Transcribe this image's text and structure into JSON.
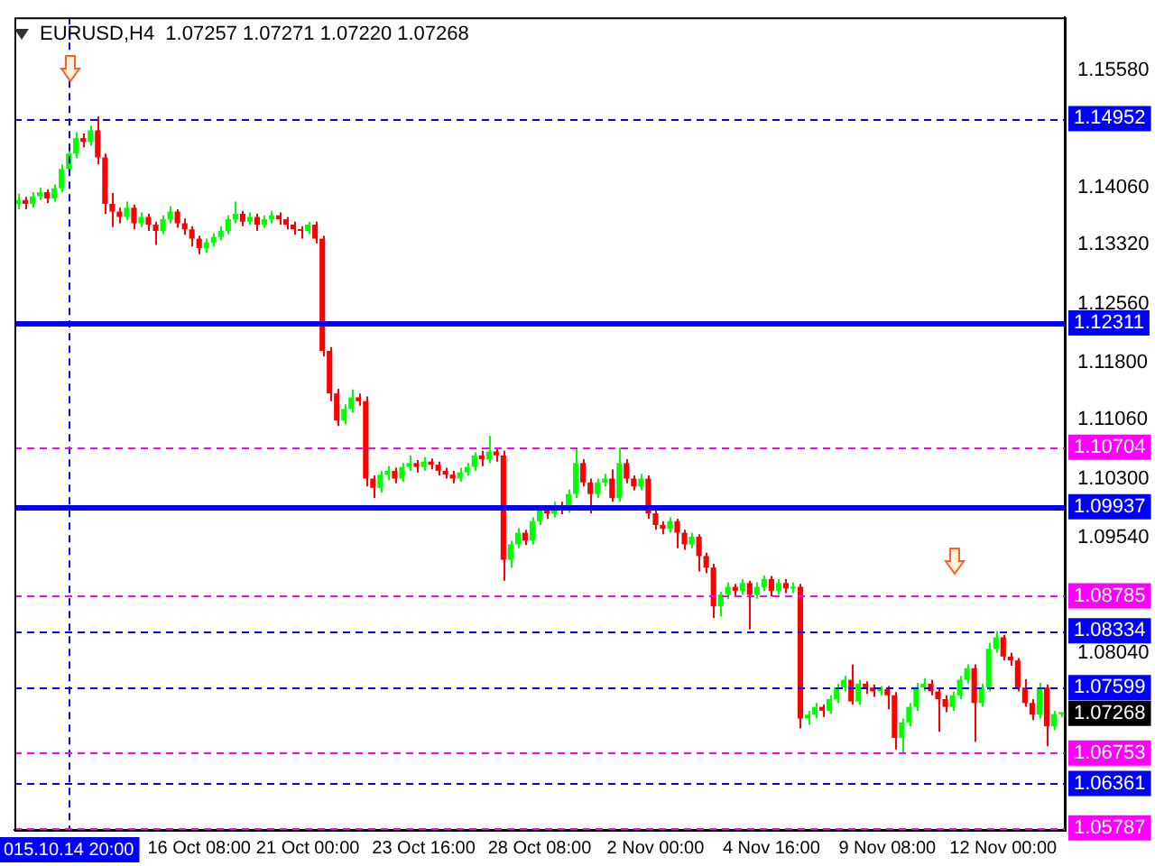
{
  "chart_data": {
    "type": "candlestick",
    "title": "EURUSD,H4  1.07257 1.07271 1.07220 1.07268",
    "categories": [
      null,
      null,
      null,
      null,
      null,
      null,
      null,
      "015.10.14 20:00",
      null,
      null,
      null,
      null,
      null,
      null,
      null,
      null,
      null,
      null,
      null,
      null,
      null,
      null,
      null,
      null,
      null,
      "16 Oct 08:00",
      null,
      null,
      null,
      null,
      null,
      null,
      null,
      null,
      null,
      null,
      null,
      null,
      null,
      null,
      "21 Oct 00:00",
      null,
      null,
      null,
      null,
      null,
      null,
      null,
      null,
      null,
      null,
      null,
      null,
      null,
      null,
      null,
      "23 Oct 16:00",
      null,
      null,
      null,
      null,
      null,
      null,
      null,
      null,
      null,
      null,
      null,
      null,
      null,
      null,
      null,
      "28 Oct 08:00",
      null,
      null,
      null,
      null,
      null,
      null,
      null,
      null,
      null,
      null,
      null,
      null,
      null,
      null,
      null,
      "2 Nov 00:00",
      null,
      null,
      null,
      null,
      null,
      null,
      null,
      null,
      null,
      null,
      null,
      null,
      null,
      null,
      null,
      "4 Nov 16:00",
      null,
      null,
      null,
      null,
      null,
      null,
      null,
      null,
      null,
      null,
      null,
      null,
      null,
      null,
      null,
      "9 Nov 08:00",
      null,
      null,
      null,
      null,
      null,
      null,
      null,
      null,
      null,
      null,
      null,
      null,
      null,
      null,
      null,
      "12 Nov 00:00",
      null,
      null,
      null,
      null,
      null,
      null,
      null,
      null
    ],
    "ohlc": [
      [
        1.1385,
        1.1398,
        1.1378,
        1.139
      ],
      [
        1.139,
        1.1394,
        1.1378,
        1.1385
      ],
      [
        1.1385,
        1.14,
        1.138,
        1.1395
      ],
      [
        1.1395,
        1.1406,
        1.139,
        1.14
      ],
      [
        1.14,
        1.1404,
        1.1386,
        1.1392
      ],
      [
        1.1392,
        1.141,
        1.1388,
        1.1405
      ],
      [
        1.1405,
        1.1436,
        1.14,
        1.143
      ],
      [
        1.143,
        1.1456,
        1.1425,
        1.145
      ],
      [
        1.145,
        1.1478,
        1.1444,
        1.147
      ],
      [
        1.147,
        1.1476,
        1.1458,
        1.1465
      ],
      [
        1.1465,
        1.1486,
        1.146,
        1.148
      ],
      [
        1.148,
        1.1498,
        1.1436,
        1.1445
      ],
      [
        1.1445,
        1.145,
        1.1372,
        1.1385
      ],
      [
        1.1385,
        1.1399,
        1.1355,
        1.1375
      ],
      [
        1.1375,
        1.138,
        1.136,
        1.1368
      ],
      [
        1.1368,
        1.1388,
        1.1364,
        1.138
      ],
      [
        1.138,
        1.1384,
        1.1352,
        1.136
      ],
      [
        1.136,
        1.1374,
        1.1355,
        1.1368
      ],
      [
        1.1368,
        1.1372,
        1.135,
        1.1358
      ],
      [
        1.1358,
        1.1362,
        1.1332,
        1.135
      ],
      [
        1.135,
        1.137,
        1.1346,
        1.1365
      ],
      [
        1.1365,
        1.1382,
        1.136,
        1.1375
      ],
      [
        1.1375,
        1.1378,
        1.1354,
        1.136
      ],
      [
        1.136,
        1.1366,
        1.1345,
        1.1352
      ],
      [
        1.1352,
        1.1356,
        1.133,
        1.134
      ],
      [
        1.134,
        1.1344,
        1.132,
        1.1328
      ],
      [
        1.1328,
        1.134,
        1.1322,
        1.1335
      ],
      [
        1.1335,
        1.1347,
        1.133,
        1.1342
      ],
      [
        1.1342,
        1.1356,
        1.1338,
        1.135
      ],
      [
        1.135,
        1.137,
        1.1346,
        1.1365
      ],
      [
        1.1365,
        1.1388,
        1.136,
        1.1372
      ],
      [
        1.1372,
        1.1376,
        1.1356,
        1.1362
      ],
      [
        1.1362,
        1.1374,
        1.1358,
        1.1368
      ],
      [
        1.1368,
        1.1372,
        1.135,
        1.1358
      ],
      [
        1.1358,
        1.137,
        1.1354,
        1.1365
      ],
      [
        1.1365,
        1.1376,
        1.136,
        1.137
      ],
      [
        1.137,
        1.1374,
        1.1358,
        1.1365
      ],
      [
        1.1365,
        1.1368,
        1.1352,
        1.1358
      ],
      [
        1.1358,
        1.1362,
        1.1345,
        1.1352
      ],
      [
        1.1352,
        1.1356,
        1.134,
        1.135
      ],
      [
        1.135,
        1.1362,
        1.1346,
        1.1358
      ],
      [
        1.1358,
        1.1362,
        1.1334,
        1.134
      ],
      [
        1.134,
        1.1344,
        1.1188,
        1.1195
      ],
      [
        1.1195,
        1.12,
        1.113,
        1.114
      ],
      [
        1.114,
        1.1146,
        1.1098,
        1.1105
      ],
      [
        1.1105,
        1.1126,
        1.11,
        1.112
      ],
      [
        1.112,
        1.1145,
        1.1115,
        1.1135
      ],
      [
        1.1135,
        1.114,
        1.1124,
        1.113
      ],
      [
        1.113,
        1.1136,
        1.102,
        1.103
      ],
      [
        1.103,
        1.1034,
        1.1005,
        1.1018
      ],
      [
        1.1018,
        1.104,
        1.1012,
        1.1035
      ],
      [
        1.1035,
        1.1046,
        1.1028,
        1.104
      ],
      [
        1.104,
        1.1044,
        1.1024,
        1.103
      ],
      [
        1.103,
        1.105,
        1.1026,
        1.1045
      ],
      [
        1.1045,
        1.106,
        1.104,
        1.105
      ],
      [
        1.105,
        1.1054,
        1.1038,
        1.1045
      ],
      [
        1.1045,
        1.1058,
        1.104,
        1.1052
      ],
      [
        1.1052,
        1.1056,
        1.1042,
        1.1048
      ],
      [
        1.1048,
        1.1052,
        1.1034,
        1.104
      ],
      [
        1.104,
        1.1044,
        1.103,
        1.1035
      ],
      [
        1.1035,
        1.104,
        1.1024,
        1.103
      ],
      [
        1.103,
        1.1044,
        1.1026,
        1.1038
      ],
      [
        1.1038,
        1.105,
        1.1034,
        1.1045
      ],
      [
        1.1045,
        1.1064,
        1.104,
        1.106
      ],
      [
        1.106,
        1.1066,
        1.1046,
        1.1055
      ],
      [
        1.1055,
        1.1085,
        1.105,
        1.1065
      ],
      [
        1.1065,
        1.107,
        1.1052,
        1.106
      ],
      [
        1.106,
        1.1066,
        1.0898,
        1.0925
      ],
      [
        1.0925,
        1.095,
        1.0915,
        1.0945
      ],
      [
        1.0945,
        1.0966,
        1.094,
        1.096
      ],
      [
        1.096,
        1.0964,
        1.0944,
        1.095
      ],
      [
        1.095,
        1.098,
        1.0945,
        1.0975
      ],
      [
        1.0975,
        1.0995,
        1.097,
        1.099
      ],
      [
        1.099,
        1.0995,
        1.0978,
        1.0985
      ],
      [
        1.0985,
        1.1,
        1.098,
        1.0995
      ],
      [
        1.0995,
        1.1,
        1.0984,
        1.099
      ],
      [
        1.099,
        1.1016,
        1.0986,
        1.101
      ],
      [
        1.101,
        1.1068,
        1.1005,
        1.105
      ],
      [
        1.105,
        1.1055,
        1.102,
        1.1025
      ],
      [
        1.1025,
        1.103,
        1.0985,
        1.101
      ],
      [
        1.101,
        1.103,
        1.1005,
        1.1025
      ],
      [
        1.1025,
        1.1036,
        1.102,
        1.103
      ],
      [
        1.103,
        1.1042,
        1.1,
        1.1005
      ],
      [
        1.1005,
        1.107,
        1.1,
        1.105
      ],
      [
        1.105,
        1.1055,
        1.1024,
        1.103
      ],
      [
        1.103,
        1.1034,
        1.1015,
        1.102
      ],
      [
        1.102,
        1.1036,
        1.1015,
        1.103
      ],
      [
        1.103,
        1.1034,
        1.0978,
        1.0985
      ],
      [
        1.0985,
        1.099,
        1.0964,
        1.097
      ],
      [
        1.097,
        1.0975,
        1.0958,
        1.0965
      ],
      [
        1.0965,
        1.098,
        1.096,
        1.0975
      ],
      [
        1.0975,
        1.0978,
        1.094,
        1.096
      ],
      [
        1.096,
        1.0964,
        1.0938,
        1.0945
      ],
      [
        1.0945,
        1.096,
        1.094,
        1.0955
      ],
      [
        1.0955,
        1.0958,
        1.091,
        1.093
      ],
      [
        1.093,
        1.0934,
        1.0908,
        1.0915
      ],
      [
        1.0915,
        1.092,
        1.085,
        1.0865
      ],
      [
        1.0865,
        1.0884,
        1.0852,
        1.088
      ],
      [
        1.088,
        1.0896,
        1.0874,
        1.089
      ],
      [
        1.089,
        1.0894,
        1.0878,
        1.0885
      ],
      [
        1.0885,
        1.09,
        1.088,
        1.0895
      ],
      [
        1.0895,
        1.0898,
        1.0835,
        1.088
      ],
      [
        1.088,
        1.0896,
        1.0875,
        1.089
      ],
      [
        1.089,
        1.0905,
        1.0885,
        1.09
      ],
      [
        1.09,
        1.0904,
        1.0878,
        1.0885
      ],
      [
        1.0885,
        1.09,
        1.088,
        1.0895
      ],
      [
        1.0895,
        1.09,
        1.0882,
        1.0888
      ],
      [
        1.0888,
        1.0896,
        1.0882,
        1.089
      ],
      [
        1.089,
        1.0894,
        1.0707,
        1.072
      ],
      [
        1.072,
        1.073,
        1.0712,
        1.0725
      ],
      [
        1.0725,
        1.074,
        1.072,
        1.0735
      ],
      [
        1.0735,
        1.0738,
        1.0722,
        1.073
      ],
      [
        1.073,
        1.075,
        1.0726,
        1.0745
      ],
      [
        1.0745,
        1.0765,
        1.074,
        1.076
      ],
      [
        1.076,
        1.0775,
        1.0755,
        1.077
      ],
      [
        1.077,
        1.079,
        1.0738,
        1.0742
      ],
      [
        1.0742,
        1.077,
        1.0738,
        1.0765
      ],
      [
        1.0765,
        1.0768,
        1.0752,
        1.076
      ],
      [
        1.076,
        1.0764,
        1.0748,
        1.0755
      ],
      [
        1.0755,
        1.0762,
        1.075,
        1.0758
      ],
      [
        1.0758,
        1.0762,
        1.0732,
        1.075
      ],
      [
        1.075,
        1.0754,
        1.068,
        1.0695
      ],
      [
        1.0695,
        1.072,
        1.0676,
        1.0715
      ],
      [
        1.0715,
        1.074,
        1.071,
        1.0735
      ],
      [
        1.0735,
        1.0766,
        1.073,
        1.076
      ],
      [
        1.076,
        1.0772,
        1.0755,
        1.0765
      ],
      [
        1.0765,
        1.077,
        1.075,
        1.0755
      ],
      [
        1.0755,
        1.0758,
        1.0703,
        1.0745
      ],
      [
        1.0745,
        1.075,
        1.0728,
        1.0735
      ],
      [
        1.0735,
        1.0755,
        1.073,
        1.075
      ],
      [
        1.075,
        1.0775,
        1.0745,
        1.077
      ],
      [
        1.077,
        1.079,
        1.0765,
        1.0785
      ],
      [
        1.0785,
        1.079,
        1.069,
        1.074
      ],
      [
        1.074,
        1.0765,
        1.0735,
        1.076
      ],
      [
        1.076,
        1.0818,
        1.0755,
        1.081
      ],
      [
        1.081,
        1.0833,
        1.0805,
        1.0825
      ],
      [
        1.0825,
        1.0828,
        1.0795,
        1.08
      ],
      [
        1.08,
        1.0805,
        1.0788,
        1.0795
      ],
      [
        1.0795,
        1.0798,
        1.0755,
        1.076
      ],
      [
        1.076,
        1.0771,
        1.0735,
        1.074
      ],
      [
        1.074,
        1.0745,
        1.0718,
        1.0725
      ],
      [
        1.0725,
        1.0766,
        1.072,
        1.076
      ],
      [
        1.076,
        1.0764,
        1.0684,
        1.071
      ],
      [
        1.071,
        1.073,
        1.0705,
        1.07257
      ],
      [
        1.07257,
        1.07271,
        1.0722,
        1.07268
      ]
    ],
    "colors": [
      "#00ff00",
      "#ff0000",
      "#00ff00",
      "#00ff00",
      "#ff0000",
      "#00ff00",
      "#00ff00",
      "#00ff00",
      "#00ff00",
      "#ff0000",
      "#00ff00",
      "#ff0000",
      "#ff0000",
      "#ff0000",
      "#ff0000",
      "#00ff00",
      "#ff0000",
      "#00ff00",
      "#ff0000",
      "#ff0000",
      "#00ff00",
      "#00ff00",
      "#ff0000",
      "#ff0000",
      "#ff0000",
      "#ff0000",
      "#00ff00",
      "#00ff00",
      "#00ff00",
      "#00ff00",
      "#00ff00",
      "#ff0000",
      "#00ff00",
      "#ff0000",
      "#00ff00",
      "#00ff00",
      "#ff0000",
      "#ff0000",
      "#ff0000",
      "#ff0000",
      "#00ff00",
      "#ff0000",
      "#ff0000",
      "#ff0000",
      "#ff0000",
      "#00ff00",
      "#00ff00",
      "#ff0000",
      "#ff0000",
      "#ff0000",
      "#00ff00",
      "#00ff00",
      "#ff0000",
      "#00ff00",
      "#00ff00",
      "#ff0000",
      "#00ff00",
      "#ff0000",
      "#ff0000",
      "#ff0000",
      "#ff0000",
      "#00ff00",
      "#00ff00",
      "#00ff00",
      "#ff0000",
      "#00ff00",
      "#ff0000",
      "#ff0000",
      "#00ff00",
      "#00ff00",
      "#ff0000",
      "#00ff00",
      "#00ff00",
      "#ff0000",
      "#00ff00",
      "#ff0000",
      "#00ff00",
      "#00ff00",
      "#ff0000",
      "#ff0000",
      "#00ff00",
      "#00ff00",
      "#ff0000",
      "#00ff00",
      "#ff0000",
      "#ff0000",
      "#00ff00",
      "#ff0000",
      "#ff0000",
      "#ff0000",
      "#00ff00",
      "#ff0000",
      "#ff0000",
      "#00ff00",
      "#ff0000",
      "#ff0000",
      "#ff0000",
      "#00ff00",
      "#00ff00",
      "#ff0000",
      "#00ff00",
      "#ff0000",
      "#00ff00",
      "#00ff00",
      "#ff0000",
      "#00ff00",
      "#ff0000",
      "#00ff00",
      "#ff0000",
      "#00ff00",
      "#00ff00",
      "#ff0000",
      "#00ff00",
      "#00ff00",
      "#00ff00",
      "#ff0000",
      "#00ff00",
      "#ff0000",
      "#ff0000",
      "#00ff00",
      "#ff0000",
      "#ff0000",
      "#00ff00",
      "#00ff00",
      "#00ff00",
      "#00ff00",
      "#ff0000",
      "#ff0000",
      "#ff0000",
      "#00ff00",
      "#00ff00",
      "#00ff00",
      "#ff0000",
      "#00ff00",
      "#00ff00",
      "#00ff00",
      "#ff0000",
      "#ff0000",
      "#ff0000",
      "#ff0000",
      "#ff0000",
      "#00ff00",
      "#ff0000",
      "#00ff00",
      "#00ff00"
    ],
    "ylim": [
      1.0576,
      1.1626
    ],
    "yticks": [
      {
        "value": 1.1558,
        "label": "1.15580"
      },
      {
        "value": 1.1406,
        "label": "1.14060"
      },
      {
        "value": 1.1332,
        "label": "1.13320"
      },
      {
        "value": 1.1256,
        "label": "1.12560"
      },
      {
        "value": 1.118,
        "label": "1.11800"
      },
      {
        "value": 1.1106,
        "label": "1.11060"
      },
      {
        "value": 1.103,
        "label": "1.10300"
      },
      {
        "value": 1.0954,
        "label": "1.09540"
      },
      {
        "value": 1.0804,
        "label": "1.08040"
      }
    ],
    "ref_lines": [
      {
        "axis": "x",
        "value": "015.10.14 20:00",
        "line_style": "dashed",
        "color": "#0000ff"
      },
      {
        "axis": "y",
        "value": 1.14952,
        "label": "1.14952",
        "line_style": "dashed",
        "color": "#0000ff"
      },
      {
        "axis": "y",
        "value": 1.12311,
        "label": "1.12311",
        "line_style": "solid",
        "color": "#0000ff"
      },
      {
        "axis": "y",
        "value": 1.10704,
        "label": "1.10704",
        "line_style": "dashed",
        "color": "#ff00ff"
      },
      {
        "axis": "y",
        "value": 1.09937,
        "label": "1.09937",
        "line_style": "solid",
        "color": "#0000ff"
      },
      {
        "axis": "y",
        "value": 1.08785,
        "label": "1.08785",
        "line_style": "dashed",
        "color": "#ff00ff"
      },
      {
        "axis": "y",
        "value": 1.08334,
        "label": "1.08334",
        "line_style": "dashed",
        "color": "#0000ff"
      },
      {
        "axis": "y",
        "value": 1.07599,
        "label": "1.07599",
        "line_style": "dashed",
        "color": "#0000ff"
      },
      {
        "axis": "y",
        "value": 1.06753,
        "label": "1.06753",
        "line_style": "dashed",
        "color": "#ff00ff"
      },
      {
        "axis": "y",
        "value": 1.06361,
        "label": "1.06361",
        "line_style": "dashed",
        "color": "#0000ff"
      },
      {
        "axis": "y",
        "value": 1.05787,
        "label": "1.05787",
        "line_style": "dashed",
        "color": "#ff00ff"
      }
    ],
    "annotations": [
      "1.07268"
    ],
    "legend": false,
    "grid": false
  }
}
